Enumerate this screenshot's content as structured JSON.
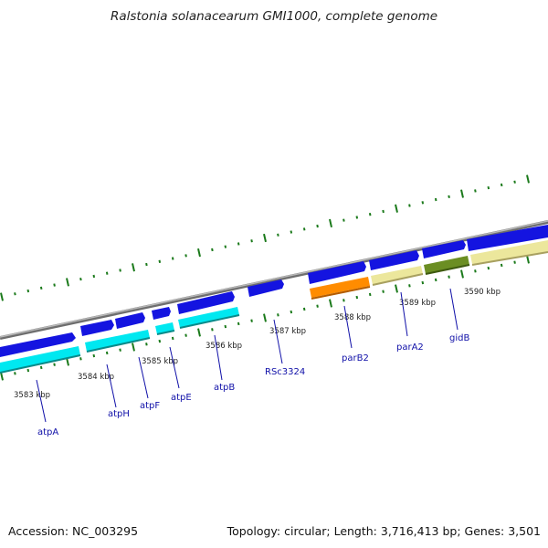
{
  "title": "Ralstonia solanacearum GMI1000, complete genome",
  "footer": {
    "accession": "Accession: NC_003295",
    "summary": "Topology: circular; Length: 3,716,413 bp; Genes: 3,501"
  },
  "colors": {
    "backbone": "#8c8c8c",
    "cds": "#1414e0",
    "tick": "#1b7a1b",
    "label": "#1010a8",
    "atp_genes": "#00e8f0",
    "parB2": "#ff8c00",
    "parA2": "#ece79c",
    "gidB": "#6b8e23",
    "pale": "#ece79c"
  },
  "kbp_labels": [
    "3583 kbp",
    "3584 kbp",
    "3585 kbp",
    "3586 kbp",
    "3587 kbp",
    "3588 kbp",
    "3589 kbp",
    "3590 kbp"
  ],
  "genes": [
    "atpA",
    "atpH",
    "atpF",
    "atpE",
    "atpB",
    "RSc3324",
    "parB2",
    "parA2",
    "gidB"
  ]
}
